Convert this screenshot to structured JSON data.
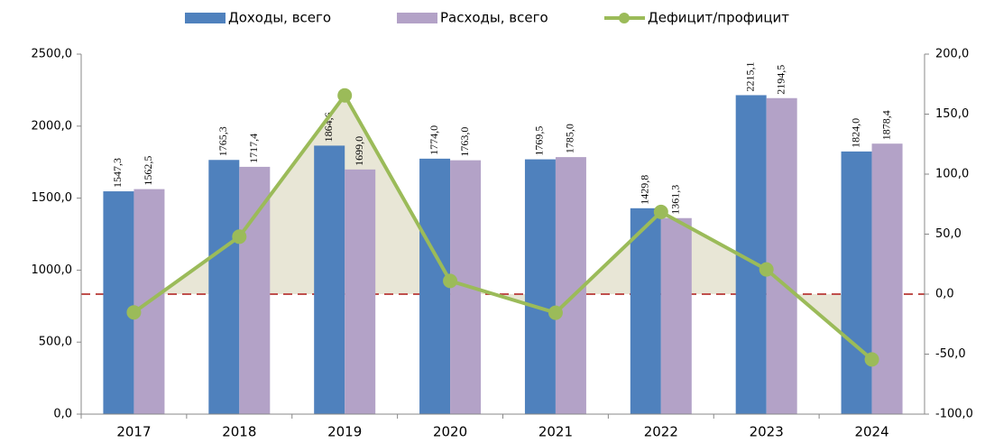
{
  "chart_data": {
    "type": "bar_line",
    "categories": [
      "2017",
      "2018",
      "2019",
      "2020",
      "2021",
      "2022",
      "2023",
      "2024"
    ],
    "series": [
      {
        "name": "Доходы, всего",
        "color": "#4f81bd",
        "type": "bar",
        "values": [
          1547.3,
          1765.3,
          1864.6,
          1774.0,
          1769.5,
          1429.8,
          2215.1,
          1824.0
        ],
        "value_labels": [
          "1547,3",
          "1765,3",
          "1864,6",
          "1774,0",
          "1769,5",
          "1429,8",
          "2215,1",
          "1824,0"
        ]
      },
      {
        "name": "Расходы, всего",
        "color": "#b3a2c7",
        "type": "bar",
        "values": [
          1562.5,
          1717.4,
          1699.0,
          1763.0,
          1785.0,
          1361.3,
          2194.5,
          1878.4
        ],
        "value_labels": [
          "1562,5",
          "1717,4",
          "1699,0",
          "1763,0",
          "1785,0",
          "1361,3",
          "2194,5",
          "1878,4"
        ]
      },
      {
        "name": "Дефицит/профицит",
        "color": "#9bbb59",
        "type": "line",
        "axis": "y2",
        "area_color": "#e8e6d6",
        "values": [
          -15.2,
          47.9,
          165.6,
          11.0,
          -15.5,
          68.5,
          20.6,
          -54.4
        ]
      }
    ],
    "ylim": [
      0,
      2500
    ],
    "yticks": [
      {
        "value": 0,
        "label": "0,0"
      },
      {
        "value": 500,
        "label": "500,0"
      },
      {
        "value": 1000,
        "label": "1000,0"
      },
      {
        "value": 1500,
        "label": "1500,0"
      },
      {
        "value": 2000,
        "label": "2000,0"
      },
      {
        "value": 2500,
        "label": "2500,0"
      }
    ],
    "y2lim": [
      -100,
      200
    ],
    "y2ticks": [
      {
        "value": -100,
        "label": "-100,0"
      },
      {
        "value": -50,
        "label": "-50,0"
      },
      {
        "value": 0,
        "label": "0,0"
      },
      {
        "value": 50,
        "label": "50,0"
      },
      {
        "value": 100,
        "label": "100,0"
      },
      {
        "value": 150,
        "label": "150,0"
      },
      {
        "value": 200,
        "label": "200,0"
      }
    ],
    "zero_line": true,
    "zero_line_color": "#c0504d",
    "legend": "top"
  }
}
